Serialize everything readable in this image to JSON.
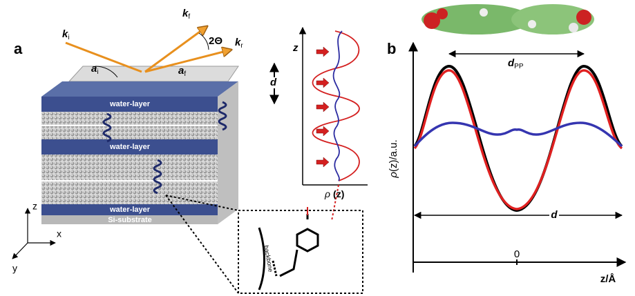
{
  "panel_a": {
    "label": "a",
    "beam": {
      "k_i": {
        "symbol": "k",
        "sub": "i"
      },
      "k_f": {
        "symbol": "k",
        "sub": "f"
      },
      "k_r": {
        "symbol": "k",
        "sub": "r"
      },
      "angle": "2Θ",
      "a_i": {
        "symbol": "a",
        "sub": "i"
      },
      "a_f": {
        "symbol": "a",
        "sub": "f"
      }
    },
    "stack": {
      "period": "d",
      "layers": [
        "water-layer",
        "water-layer",
        "water-layer"
      ],
      "substrate": "Si-substrate"
    },
    "profile": {
      "axis": "z",
      "xlabel": {
        "symbol": "ρ",
        "arg": "(z)"
      }
    },
    "axes": {
      "z": "z",
      "x": "x",
      "y": "y"
    },
    "inset": {
      "backbone": "backbone"
    }
  },
  "panel_b": {
    "label": "b",
    "d_pp": {
      "symbol": "d",
      "sub": "PP"
    },
    "ylabel": {
      "symbol": "ρ",
      "rest": "(z)/a.u."
    },
    "period": "d",
    "zero": "0",
    "xlabel": "z/Å"
  }
}
